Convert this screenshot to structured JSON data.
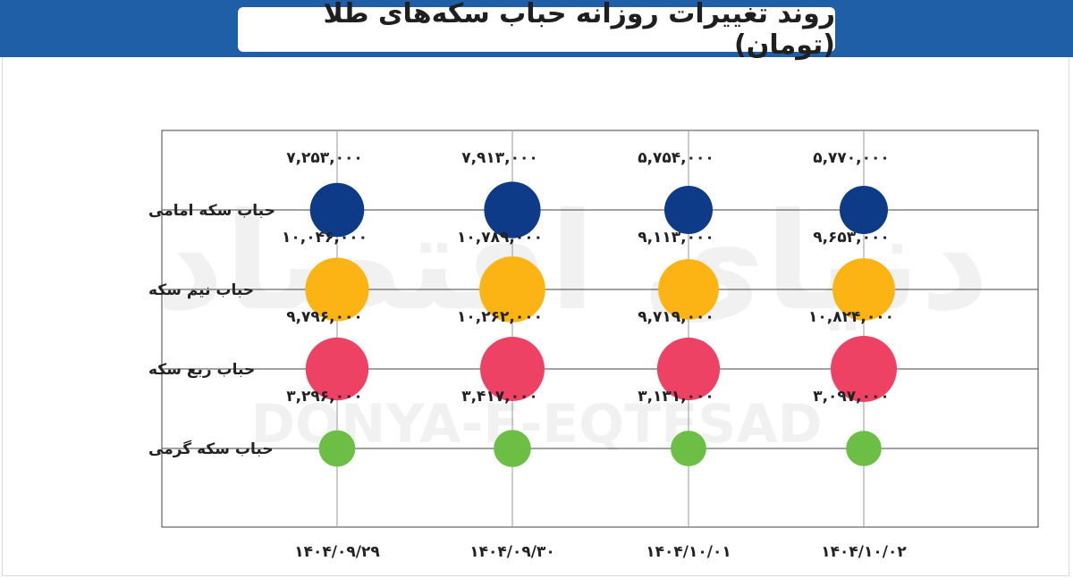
{
  "title": "روند تغییرات روزانه حباب سکه‌های طلا (تومان)",
  "watermark": {
    "fa": "دنیای اقتصاد",
    "en": "DONYA-E-EQTESAD"
  },
  "colors": {
    "header_bg": "#1f5fa8",
    "grid": "#444444"
  },
  "chart_data": {
    "type": "scatter",
    "subtype": "bubble-grid",
    "unit": "تومان",
    "categories": [
      "۱۴۰۴/۰۹/۲۹",
      "۱۴۰۴/۰۹/۳۰",
      "۱۴۰۴/۱۰/۰۱",
      "۱۴۰۴/۱۰/۰۲"
    ],
    "series": [
      {
        "name": "حباب سکه امامی",
        "color": "#0d3b87",
        "values": [
          7253000,
          7913000,
          5754000,
          5770000
        ],
        "labels": [
          "۷,۲۵۳,۰۰۰",
          "۷,۹۱۳,۰۰۰",
          "۵,۷۵۴,۰۰۰",
          "۵,۷۷۰,۰۰۰"
        ]
      },
      {
        "name": "حباب نیم سکه",
        "color": "#fbb414",
        "values": [
          10046000,
          10789000,
          9113000,
          9653000
        ],
        "labels": [
          "۱۰,۰۴۶,۰۰۰",
          "۱۰,۷۸۹,۰۰۰",
          "۹,۱۱۳,۰۰۰",
          "۹,۶۵۳,۰۰۰"
        ]
      },
      {
        "name": "حباب ربع سکه",
        "color": "#ee4264",
        "values": [
          9796000,
          10262000,
          9719000,
          10824000
        ],
        "labels": [
          "۹,۷۹۶,۰۰۰",
          "۱۰,۲۶۲,۰۰۰",
          "۹,۷۱۹,۰۰۰",
          "۱۰,۸۲۴,۰۰۰"
        ]
      },
      {
        "name": "حباب سکه گرمی",
        "color": "#6cbe45",
        "values": [
          3296000,
          3417000,
          3131000,
          3097000
        ],
        "labels": [
          "۳,۲۹۶,۰۰۰",
          "۳,۴۱۷,۰۰۰",
          "۳,۱۳۱,۰۰۰",
          "۳,۰۹۷,۰۰۰"
        ]
      }
    ],
    "grid": true,
    "legend": "none"
  }
}
